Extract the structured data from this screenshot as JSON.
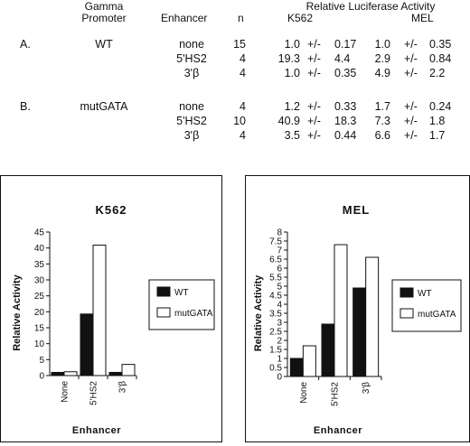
{
  "table": {
    "header": {
      "gamma_line1": "Gamma",
      "gamma_line2": "Promoter",
      "enhancer": "Enhancer",
      "n": "n",
      "rla": "Relative Luciferase Activity",
      "k562": "K562",
      "mel": "MEL"
    },
    "groups": [
      {
        "label": "A.",
        "promoter": "WT",
        "rows": [
          {
            "enhancer": "none",
            "n": "15",
            "k_val": "1.0",
            "k_pm": "+/-",
            "k_err": "0.17",
            "m_val": "1.0",
            "m_pm": "+/-",
            "m_err": "0.35"
          },
          {
            "enhancer": "5'HS2",
            "n": "4",
            "k_val": "19.3",
            "k_pm": "+/-",
            "k_err": "4.4",
            "m_val": "2.9",
            "m_pm": "+/-",
            "m_err": "0.84"
          },
          {
            "enhancer": "3'β",
            "n": "4",
            "k_val": "1.0",
            "k_pm": "+/-",
            "k_err": "0.35",
            "m_val": "4.9",
            "m_pm": "+/-",
            "m_err": "2.2"
          }
        ]
      },
      {
        "label": "B.",
        "promoter": "mutGATA",
        "rows": [
          {
            "enhancer": "none",
            "n": "4",
            "k_val": "1.2",
            "k_pm": "+/-",
            "k_err": "0.33",
            "m_val": "1.7",
            "m_pm": "+/-",
            "m_err": "0.24"
          },
          {
            "enhancer": "5'HS2",
            "n": "10",
            "k_val": "40.9",
            "k_pm": "+/-",
            "k_err": "18.3",
            "m_val": "7.3",
            "m_pm": "+/-",
            "m_err": "1.8"
          },
          {
            "enhancer": "3'β",
            "n": "4",
            "k_val": "3.5",
            "k_pm": "+/-",
            "k_err": "0.44",
            "m_val": "6.6",
            "m_pm": "+/-",
            "m_err": "1.7"
          }
        ]
      }
    ]
  },
  "colors": {
    "wt": "#111111",
    "mut": "#ffffff",
    "stroke": "#111111"
  },
  "chart_data": [
    {
      "type": "bar",
      "title": "K562",
      "xlabel": "Enhancer",
      "ylabel": "Relative Activity",
      "categories": [
        "None",
        "5'HS2",
        "3'β"
      ],
      "series": [
        {
          "name": "WT",
          "values": [
            1.0,
            19.3,
            1.0
          ]
        },
        {
          "name": "mutGATA",
          "values": [
            1.2,
            40.9,
            3.5
          ]
        }
      ],
      "ylim": [
        0,
        45
      ],
      "yticks": [
        0,
        5,
        10,
        15,
        20,
        25,
        30,
        35,
        40,
        45
      ],
      "grid": false,
      "legend": "right"
    },
    {
      "type": "bar",
      "title": "MEL",
      "xlabel": "Enhancer",
      "ylabel": "Relative Activity",
      "categories": [
        "None",
        "5'HS2",
        "3'β"
      ],
      "series": [
        {
          "name": "WT",
          "values": [
            1.0,
            2.9,
            4.9
          ]
        },
        {
          "name": "mutGATA",
          "values": [
            1.7,
            7.3,
            6.6
          ]
        }
      ],
      "ylim": [
        0,
        8
      ],
      "yticks": [
        0,
        0.5,
        1,
        1.5,
        2,
        2.5,
        3,
        3.5,
        4,
        4.5,
        5,
        5.5,
        6,
        6.5,
        7,
        7.5,
        8
      ],
      "grid": false,
      "legend": "right"
    }
  ]
}
